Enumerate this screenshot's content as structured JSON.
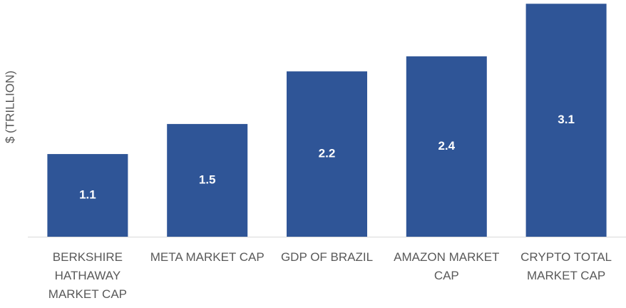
{
  "chart_data": {
    "type": "bar",
    "y_label": "$ (TRILLION)",
    "categories": [
      "BERKSHIRE HATHAWAY MARKET CAP",
      "META MARKET CAP",
      "GDP OF BRAZIL",
      "AMAZON MARKET CAP",
      "CRYPTO TOTAL MARKET CAP"
    ],
    "values": [
      1.1,
      1.5,
      2.2,
      2.4,
      3.1
    ],
    "color": "#2F5597",
    "ylim": [
      0,
      3.15
    ]
  }
}
